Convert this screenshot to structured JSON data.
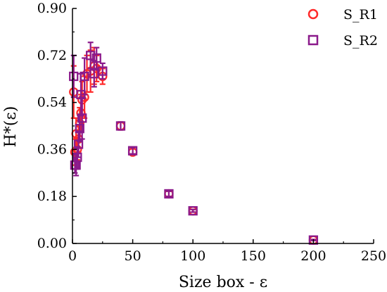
{
  "chart_data": {
    "type": "scatter",
    "title": "",
    "xlabel": "Size box - ε",
    "ylabel": "H*(ε)",
    "xlim": [
      0,
      250
    ],
    "ylim": [
      0,
      0.9
    ],
    "xticks": [
      "0",
      "50",
      "100",
      "150",
      "200",
      "250"
    ],
    "yticks": [
      "0.00",
      "0.18",
      "0.36",
      "0.54",
      "0.72",
      "0.90"
    ],
    "grid": false,
    "legend_position": "top-right",
    "series": [
      {
        "name": "S_R1",
        "marker": "circle",
        "color": "#ff2a2a",
        "points": [
          {
            "x": 1,
            "y": 0.58,
            "err": 0.1
          },
          {
            "x": 2,
            "y": 0.35,
            "err": 0.05
          },
          {
            "x": 3,
            "y": 0.42,
            "err": 0.06
          },
          {
            "x": 4,
            "y": 0.36,
            "err": 0.04
          },
          {
            "x": 5,
            "y": 0.4,
            "err": 0.05
          },
          {
            "x": 6,
            "y": 0.46,
            "err": 0.06
          },
          {
            "x": 7,
            "y": 0.5,
            "err": 0.07
          },
          {
            "x": 8,
            "y": 0.55,
            "err": 0.07
          },
          {
            "x": 10,
            "y": 0.56,
            "err": 0.08
          },
          {
            "x": 12,
            "y": 0.65,
            "err": 0.07
          },
          {
            "x": 15,
            "y": 0.66,
            "err": 0.08
          },
          {
            "x": 18,
            "y": 0.68,
            "err": 0.07
          },
          {
            "x": 20,
            "y": 0.67,
            "err": 0.05
          },
          {
            "x": 25,
            "y": 0.64,
            "err": 0.03
          },
          {
            "x": 40,
            "y": 0.45,
            "err": 0.015
          },
          {
            "x": 50,
            "y": 0.35,
            "err": 0.012
          },
          {
            "x": 80,
            "y": 0.19,
            "err": 0.01
          },
          {
            "x": 100,
            "y": 0.125,
            "err": 0.005
          },
          {
            "x": 200,
            "y": 0.013,
            "err": 0.002
          }
        ]
      },
      {
        "name": "S_R2",
        "marker": "square",
        "color": "#8b1a8b",
        "points": [
          {
            "x": 1,
            "y": 0.64,
            "err": 0.08
          },
          {
            "x": 2,
            "y": 0.3,
            "err": 0.03
          },
          {
            "x": 3,
            "y": 0.3,
            "err": 0.04
          },
          {
            "x": 4,
            "y": 0.33,
            "err": 0.04
          },
          {
            "x": 5,
            "y": 0.38,
            "err": 0.05
          },
          {
            "x": 6,
            "y": 0.44,
            "err": 0.05
          },
          {
            "x": 7,
            "y": 0.57,
            "err": 0.08
          },
          {
            "x": 8,
            "y": 0.48,
            "err": 0.08
          },
          {
            "x": 10,
            "y": 0.64,
            "err": 0.07
          },
          {
            "x": 15,
            "y": 0.72,
            "err": 0.05
          },
          {
            "x": 18,
            "y": 0.65,
            "err": 0.05
          },
          {
            "x": 20,
            "y": 0.71,
            "err": 0.04
          },
          {
            "x": 25,
            "y": 0.66,
            "err": 0.03
          },
          {
            "x": 40,
            "y": 0.45,
            "err": 0.015
          },
          {
            "x": 50,
            "y": 0.355,
            "err": 0.012
          },
          {
            "x": 80,
            "y": 0.19,
            "err": 0.01
          },
          {
            "x": 100,
            "y": 0.125,
            "err": 0.005
          },
          {
            "x": 200,
            "y": 0.013,
            "err": 0.002
          }
        ]
      }
    ]
  }
}
